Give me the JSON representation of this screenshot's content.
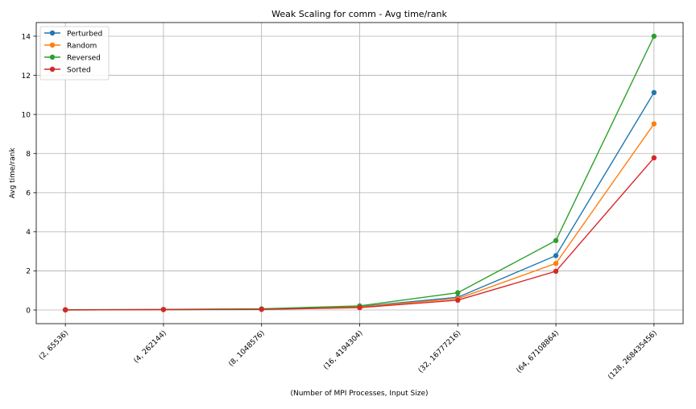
{
  "chart_data": {
    "type": "line",
    "title": "Weak Scaling for comm - Avg time/rank",
    "xlabel": "(Number of MPI Processes, Input Size)",
    "ylabel": "Avg time/rank",
    "categories": [
      "(2, 65536)",
      "(4, 262144)",
      "(8, 1048576)",
      "(16, 4194304)",
      "(32, 16777216)",
      "(64, 67108864)",
      "(128, 268435456)"
    ],
    "ylim": [
      -0.7,
      14.7
    ],
    "yticks": [
      0,
      2,
      4,
      6,
      8,
      10,
      12,
      14
    ],
    "grid": true,
    "legend_position": "top-left",
    "series": [
      {
        "name": "Perturbed",
        "color": "#1f77b4",
        "values": [
          0.01,
          0.02,
          0.04,
          0.17,
          0.65,
          2.78,
          11.12
        ]
      },
      {
        "name": "Random",
        "color": "#ff7f0e",
        "values": [
          0.01,
          0.02,
          0.04,
          0.15,
          0.58,
          2.38,
          9.52
        ]
      },
      {
        "name": "Reversed",
        "color": "#2ca02c",
        "values": [
          0.01,
          0.03,
          0.06,
          0.21,
          0.88,
          3.55,
          14.0
        ]
      },
      {
        "name": "Sorted",
        "color": "#d62728",
        "values": [
          0.0,
          0.02,
          0.03,
          0.12,
          0.5,
          1.98,
          7.78
        ]
      }
    ]
  }
}
